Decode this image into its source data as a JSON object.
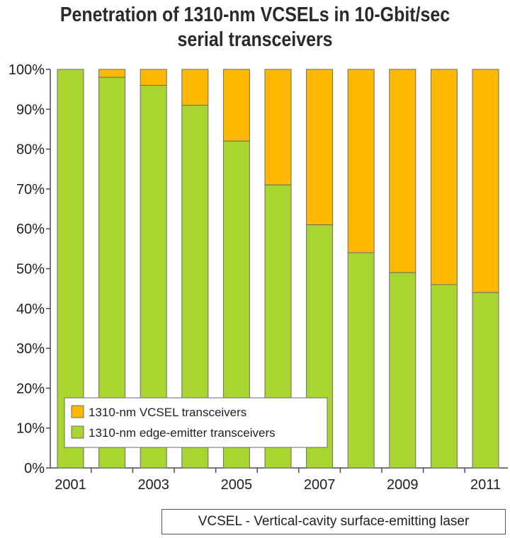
{
  "title_lines": [
    "Penetration of 1310-nm VCSELs in 10-Gbit/sec",
    "serial transceivers"
  ],
  "footnote": "VCSEL - Vertical-cavity surface-emitting laser",
  "colors": {
    "vcsel": "#FFB800",
    "edge": "#A8D530",
    "bar_stroke": "#6b6b6b",
    "axis": "#4a4a4a"
  },
  "chart_data": {
    "type": "bar",
    "stacked": true,
    "title": "Penetration of 1310-nm VCSELs in 10-Gbit/sec serial transceivers",
    "categories": [
      "2001",
      "2002",
      "2003",
      "2004",
      "2005",
      "2006",
      "2007",
      "2008",
      "2009",
      "2010",
      "2011"
    ],
    "x_tick_labels": [
      "2001",
      "",
      "2003",
      "",
      "2005",
      "",
      "2007",
      "",
      "2009",
      "",
      "2011"
    ],
    "y_ticks": [
      "0%",
      "10%",
      "20%",
      "30%",
      "40%",
      "50%",
      "60%",
      "70%",
      "80%",
      "90%",
      "100%"
    ],
    "ylim": [
      0,
      100
    ],
    "legend_position": "bottom-left",
    "series": [
      {
        "name": "1310-nm edge-emitter transceivers",
        "color": "#A8D530",
        "values": [
          100,
          98,
          96,
          91,
          82,
          71,
          61,
          54,
          49,
          46,
          44
        ]
      },
      {
        "name": "1310-nm VCSEL transceivers",
        "color": "#FFB800",
        "values": [
          0,
          2,
          4,
          9,
          18,
          29,
          39,
          46,
          51,
          54,
          56
        ]
      }
    ],
    "legend": [
      {
        "label": "1310-nm VCSEL transceivers",
        "color": "#FFB800"
      },
      {
        "label": "1310-nm edge-emitter transceivers",
        "color": "#A8D530"
      }
    ]
  }
}
